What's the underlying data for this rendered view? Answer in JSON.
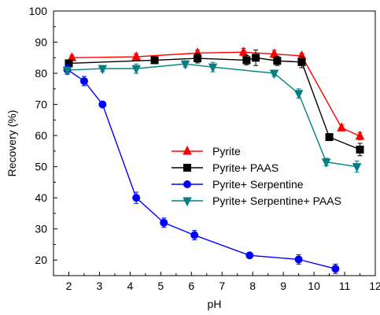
{
  "chart_data": {
    "type": "line",
    "title": "",
    "xlabel": "pH",
    "ylabel": "Recovery (%)",
    "xlim": [
      1.5,
      12
    ],
    "ylim": [
      15,
      100
    ],
    "xticks": [
      2,
      3,
      4,
      5,
      6,
      7,
      8,
      9,
      10,
      11,
      12
    ],
    "yticks": [
      20,
      30,
      40,
      50,
      60,
      70,
      80,
      90,
      100
    ],
    "legend_position": "center-right",
    "grid": false,
    "series": [
      {
        "name": "Pyrite",
        "color": "#ff0000",
        "marker": "triangle",
        "points": [
          {
            "x": 2.1,
            "y": 85.0,
            "err": 0.8
          },
          {
            "x": 4.2,
            "y": 85.3,
            "err": 1.0
          },
          {
            "x": 6.2,
            "y": 86.5,
            "err": 1.0
          },
          {
            "x": 7.7,
            "y": 86.8,
            "err": 1.2
          },
          {
            "x": 8.7,
            "y": 86.2,
            "err": 1.2
          },
          {
            "x": 9.6,
            "y": 85.6,
            "err": 0.8
          },
          {
            "x": 10.9,
            "y": 62.5,
            "err": 1.0
          },
          {
            "x": 11.5,
            "y": 59.8,
            "err": 1.2
          }
        ]
      },
      {
        "name": "Pyrite+ PAAS",
        "color": "#000000",
        "marker": "square",
        "points": [
          {
            "x": 2.0,
            "y": 83.2,
            "err": 1.0
          },
          {
            "x": 4.8,
            "y": 84.2,
            "err": 0.8
          },
          {
            "x": 6.2,
            "y": 84.8,
            "err": 1.5
          },
          {
            "x": 7.8,
            "y": 84.2,
            "err": 1.5
          },
          {
            "x": 8.1,
            "y": 85.0,
            "err": 2.5
          },
          {
            "x": 8.8,
            "y": 84.0,
            "err": 1.5
          },
          {
            "x": 9.6,
            "y": 83.6,
            "err": 1.8
          },
          {
            "x": 10.5,
            "y": 59.5,
            "err": 0.5
          },
          {
            "x": 11.5,
            "y": 55.5,
            "err": 2.0
          }
        ]
      },
      {
        "name": "Pyrite+ Serpentine",
        "color": "#0000ff",
        "marker": "circle",
        "points": [
          {
            "x": 1.95,
            "y": 81.2,
            "err": 1.5
          },
          {
            "x": 2.5,
            "y": 77.5,
            "err": 1.5
          },
          {
            "x": 3.1,
            "y": 70.0,
            "err": 0.5
          },
          {
            "x": 4.2,
            "y": 40.0,
            "err": 1.8
          },
          {
            "x": 5.1,
            "y": 32.0,
            "err": 1.5
          },
          {
            "x": 6.1,
            "y": 28.0,
            "err": 1.5
          },
          {
            "x": 7.9,
            "y": 21.5,
            "err": 0.8
          },
          {
            "x": 9.5,
            "y": 20.2,
            "err": 1.5
          },
          {
            "x": 10.7,
            "y": 17.2,
            "err": 1.5
          }
        ]
      },
      {
        "name": "Pyrite+ Serpentine+ PAAS",
        "color": "#008080",
        "marker": "triangle-down",
        "points": [
          {
            "x": 1.95,
            "y": 81.0,
            "err": 1.0
          },
          {
            "x": 3.1,
            "y": 81.5,
            "err": 1.0
          },
          {
            "x": 4.2,
            "y": 81.5,
            "err": 1.5
          },
          {
            "x": 5.8,
            "y": 83.0,
            "err": 1.0
          },
          {
            "x": 6.7,
            "y": 82.0,
            "err": 1.5
          },
          {
            "x": 8.7,
            "y": 80.0,
            "err": 1.0
          },
          {
            "x": 9.5,
            "y": 73.5,
            "err": 1.5
          },
          {
            "x": 10.4,
            "y": 51.5,
            "err": 1.2
          },
          {
            "x": 11.4,
            "y": 50.0,
            "err": 1.8
          }
        ]
      }
    ]
  }
}
